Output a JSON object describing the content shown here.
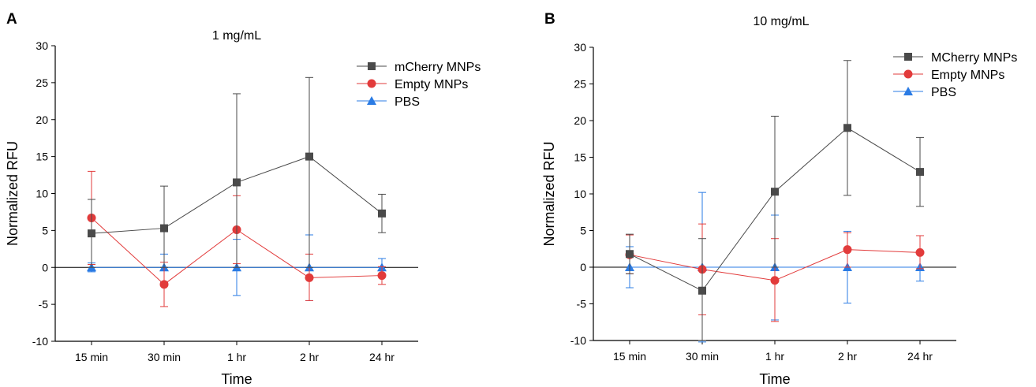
{
  "chart_data": [
    {
      "panel_label": "A",
      "type": "line",
      "title": "1 mg/mL",
      "xlabel": "Time",
      "ylabel": "Normalized RFU",
      "categories": [
        "15 min",
        "30 min",
        "1 hr",
        "2 hr",
        "24 hr"
      ],
      "ylim": [
        -10,
        30
      ],
      "yticks": [
        "-10",
        "-5",
        "0",
        "5",
        "10",
        "15",
        "20",
        "25",
        "30"
      ],
      "legend_position": "top-right",
      "series": [
        {
          "name": "mCherry MNPs",
          "marker": "square",
          "color": "#4a4a4a",
          "values": [
            4.6,
            5.3,
            11.5,
            15.0,
            7.3
          ],
          "err_low": [
            0,
            0,
            0,
            0,
            4.7
          ],
          "err_high": [
            9.2,
            11.0,
            23.5,
            25.7,
            9.9
          ]
        },
        {
          "name": "Empty MNPs",
          "marker": "circle",
          "color": "#e23b3b",
          "values": [
            6.7,
            -2.3,
            5.1,
            -1.4,
            -1.1
          ],
          "err_low": [
            0.4,
            -5.3,
            0.5,
            -4.5,
            -2.3
          ],
          "err_high": [
            13.0,
            0.7,
            9.7,
            1.8,
            0.1
          ]
        },
        {
          "name": "PBS",
          "marker": "triangle",
          "color": "#2a7be4",
          "values": [
            0,
            0,
            0,
            0,
            0
          ],
          "err_low": [
            -0.6,
            -2.0,
            -3.8,
            -4.5,
            -0.9
          ],
          "err_high": [
            0.6,
            1.8,
            3.8,
            4.4,
            1.2
          ]
        }
      ]
    },
    {
      "panel_label": "B",
      "type": "line",
      "title": "10 mg/mL",
      "xlabel": "Time",
      "ylabel": "Normalized RFU",
      "categories": [
        "15 min",
        "30 min",
        "1 hr",
        "2 hr",
        "24 hr"
      ],
      "ylim": [
        -10,
        30
      ],
      "yticks": [
        "-10",
        "-5",
        "0",
        "5",
        "10",
        "15",
        "20",
        "25",
        "30"
      ],
      "legend_position": "top-right",
      "series": [
        {
          "name": "MCherry MNPs",
          "marker": "square",
          "color": "#4a4a4a",
          "values": [
            1.8,
            -3.2,
            10.3,
            19.0,
            13.0
          ],
          "err_low": [
            -0.9,
            -10.0,
            0,
            9.8,
            8.3
          ],
          "err_high": [
            4.5,
            3.9,
            20.6,
            28.2,
            17.7
          ]
        },
        {
          "name": "Empty MNPs",
          "marker": "circle",
          "color": "#e23b3b",
          "values": [
            1.7,
            -0.3,
            -1.8,
            2.4,
            2.0
          ],
          "err_low": [
            -0.9,
            -6.5,
            -7.4,
            0,
            -0.2
          ],
          "err_high": [
            4.4,
            5.9,
            3.9,
            4.7,
            4.3
          ]
        },
        {
          "name": "PBS",
          "marker": "triangle",
          "color": "#2a7be4",
          "values": [
            0,
            0,
            0,
            0,
            0
          ],
          "err_low": [
            -2.8,
            -10.2,
            -7.2,
            -4.9,
            -1.9
          ],
          "err_high": [
            2.8,
            10.2,
            7.1,
            4.9,
            1.9
          ]
        }
      ]
    }
  ]
}
